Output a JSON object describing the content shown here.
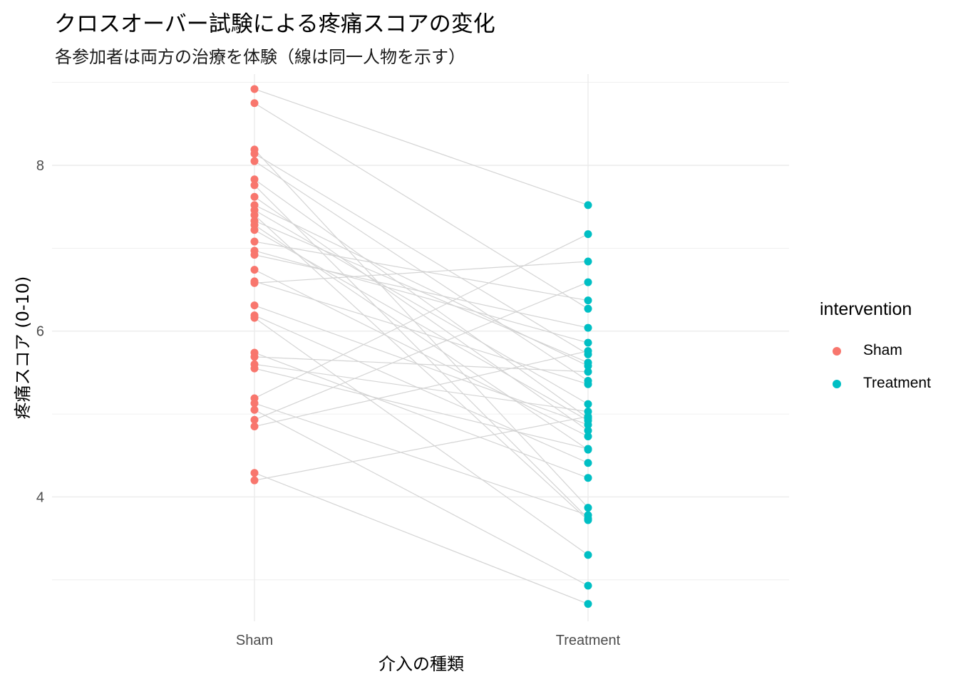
{
  "chart_data": {
    "type": "scatter",
    "title": "クロスオーバー試験による疼痛スコアの変化",
    "subtitle": "各参加者は両方の治療を体験（線は同一人物を示す）",
    "xlabel": "介入の種類",
    "ylabel": "疼痛スコア (0-10)",
    "categories": [
      "Sham",
      "Treatment"
    ],
    "ylim": [
      2.5,
      9.1
    ],
    "yticks": [
      4,
      6,
      8
    ],
    "grid": true,
    "legend": {
      "title": "intervention",
      "placement": "right"
    },
    "colors": {
      "Sham": "#F8766D",
      "Treatment": "#00BFC4",
      "line": "#d4d4d4"
    },
    "series": [
      {
        "name": "Sham",
        "values": [
          8.92,
          8.75,
          8.19,
          8.14,
          8.05,
          7.83,
          7.76,
          7.62,
          7.52,
          7.46,
          7.4,
          7.33,
          7.28,
          7.22,
          7.08,
          6.97,
          6.92,
          6.74,
          6.6,
          6.58,
          6.31,
          6.19,
          6.16,
          5.74,
          5.69,
          5.6,
          5.55,
          5.19,
          5.13,
          5.05,
          4.93,
          4.85,
          4.29,
          4.2
        ]
      },
      {
        "name": "Treatment",
        "values": [
          7.52,
          6.27,
          3.87,
          5.72,
          5.4,
          4.95,
          3.74,
          4.8,
          5.58,
          5.12,
          3.72,
          5.62,
          4.57,
          4.92,
          6.37,
          5.86,
          6.04,
          4.73,
          5.36,
          6.84,
          4.87,
          4.41,
          3.3,
          4.23,
          5.51,
          5.03,
          4.58,
          7.17,
          3.78,
          2.93,
          6.59,
          5.76,
          2.71,
          4.97
        ]
      }
    ]
  }
}
